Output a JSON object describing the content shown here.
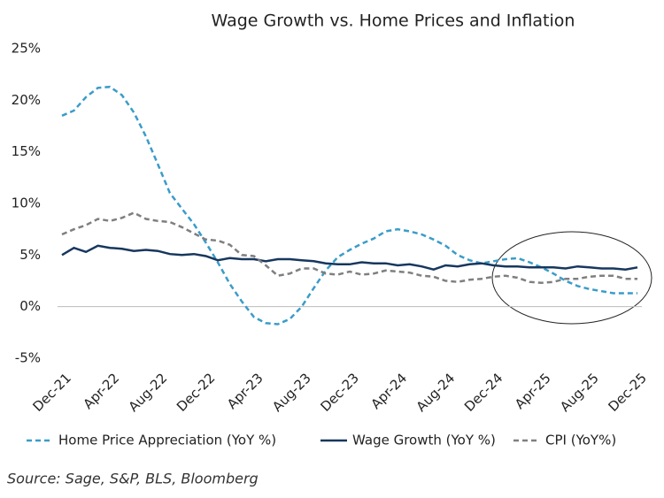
{
  "chart_data": {
    "type": "line",
    "title": "Wage Growth vs. Home Prices and Inflation",
    "categories": [
      "Dec-21",
      null,
      null,
      null,
      "Apr-22",
      null,
      null,
      null,
      "Aug-22",
      null,
      null,
      null,
      "Dec-22",
      null,
      null,
      null,
      "Apr-23",
      null,
      null,
      null,
      "Aug-23",
      null,
      null,
      null,
      "Dec-23",
      null,
      null,
      null,
      "Apr-24",
      null,
      null,
      null,
      "Aug-24",
      null,
      null,
      null,
      "Dec-24",
      null,
      null,
      null,
      "Apr-25",
      null,
      null,
      null,
      "Aug-25",
      null,
      null,
      null,
      "Dec-25"
    ],
    "series": [
      {
        "name": "Home Price Appreciation (YoY %)",
        "color": "#3a9cc9",
        "dash": "dashed",
        "values": [
          18.5,
          19.0,
          20.3,
          21.2,
          21.3,
          20.5,
          18.8,
          16.5,
          13.8,
          11.0,
          9.5,
          8.0,
          6.2,
          4.3,
          2.2,
          0.5,
          -1.0,
          -1.6,
          -1.7,
          -1.2,
          0.0,
          1.8,
          3.5,
          4.8,
          5.5,
          6.1,
          6.6,
          7.3,
          7.5,
          7.3,
          7.0,
          6.5,
          5.9,
          5.0,
          4.5,
          4.2,
          4.4,
          4.6,
          4.7,
          4.3,
          3.8,
          3.2,
          2.5,
          2.0,
          1.7,
          1.5,
          1.3,
          1.3,
          1.3
        ]
      },
      {
        "name": "Wage Growth (YoY %)",
        "color": "#17375e",
        "dash": "solid",
        "values": [
          5.0,
          5.7,
          5.3,
          5.9,
          5.7,
          5.6,
          5.4,
          5.5,
          5.4,
          5.1,
          5.0,
          5.1,
          4.9,
          4.5,
          4.7,
          4.6,
          4.6,
          4.4,
          4.6,
          4.6,
          4.5,
          4.4,
          4.2,
          4.1,
          4.1,
          4.3,
          4.2,
          4.2,
          4.0,
          4.1,
          3.9,
          3.6,
          4.0,
          3.9,
          4.1,
          4.2,
          4.0,
          3.9,
          3.9,
          3.8,
          3.8,
          3.8,
          3.7,
          3.9,
          3.8,
          3.7,
          3.7,
          3.6,
          3.8
        ]
      },
      {
        "name": "CPI (YoY%)",
        "color": "#7f7f7f",
        "dash": "dashed",
        "values": [
          7.0,
          7.5,
          7.9,
          8.5,
          8.3,
          8.6,
          9.1,
          8.5,
          8.3,
          8.2,
          7.7,
          7.1,
          6.5,
          6.4,
          6.0,
          5.0,
          4.9,
          4.0,
          3.0,
          3.2,
          3.7,
          3.7,
          3.2,
          3.1,
          3.4,
          3.1,
          3.2,
          3.5,
          3.4,
          3.3,
          3.0,
          2.9,
          2.5,
          2.4,
          2.6,
          2.7,
          2.9,
          3.0,
          2.8,
          2.4,
          2.3,
          2.4,
          2.7,
          2.7,
          2.9,
          3.0,
          3.0,
          2.7,
          2.7
        ]
      }
    ],
    "ylim": [
      -5,
      25
    ],
    "yticks": [
      {
        "value": -5,
        "label": "-5%"
      },
      {
        "value": 0,
        "label": "0%"
      },
      {
        "value": 5,
        "label": "5%"
      },
      {
        "value": 10,
        "label": "10%"
      },
      {
        "value": 15,
        "label": "15%"
      },
      {
        "value": 20,
        "label": "20%"
      },
      {
        "value": 25,
        "label": "25%"
      }
    ],
    "grid": false,
    "legend": "bottom",
    "source": "Source: Sage, S&P, BLS, Bloomberg"
  }
}
